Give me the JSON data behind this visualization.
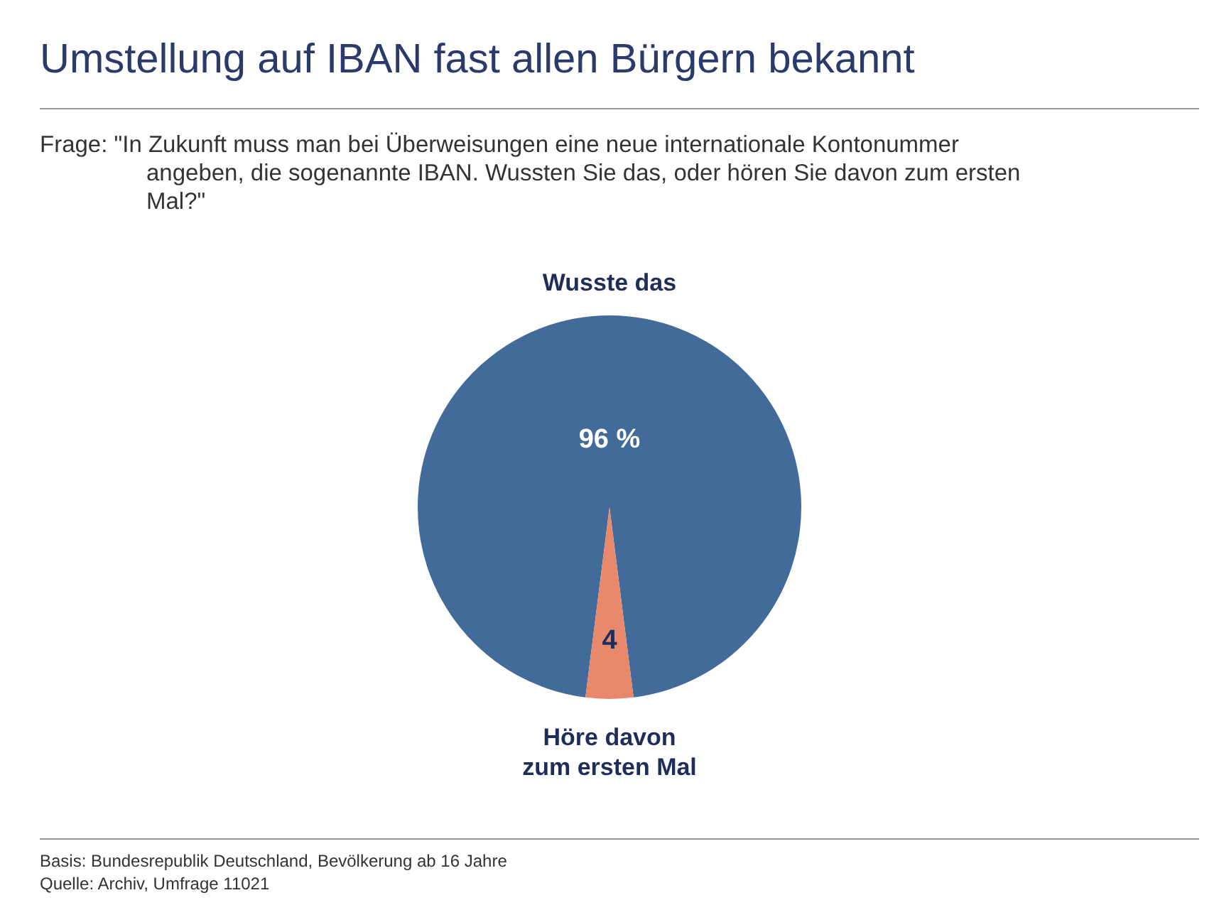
{
  "chart_data": {
    "type": "pie",
    "title": "Umstellung auf IBAN fast allen Bürgern bekannt",
    "subtitle": "Frage: \"In Zukunft muss man bei Überweisungen eine neue internationale Kontonummer angeben, die sogenannte IBAN. Wussten Sie das, oder hören Sie davon zum ersten Mal?\"",
    "categories": [
      "Wusste das",
      "Höre davon zum ersten Mal"
    ],
    "values": [
      96,
      4
    ],
    "value_labels": [
      "96 %",
      "4"
    ],
    "colors": [
      "#436b9a",
      "#e8896b"
    ],
    "legend": false,
    "annotations": [
      "Basis: Bundesrepublik Deutschland, Bevölkerung ab 16 Jahre",
      "Quelle: Archiv, Umfrage 11021"
    ]
  }
}
